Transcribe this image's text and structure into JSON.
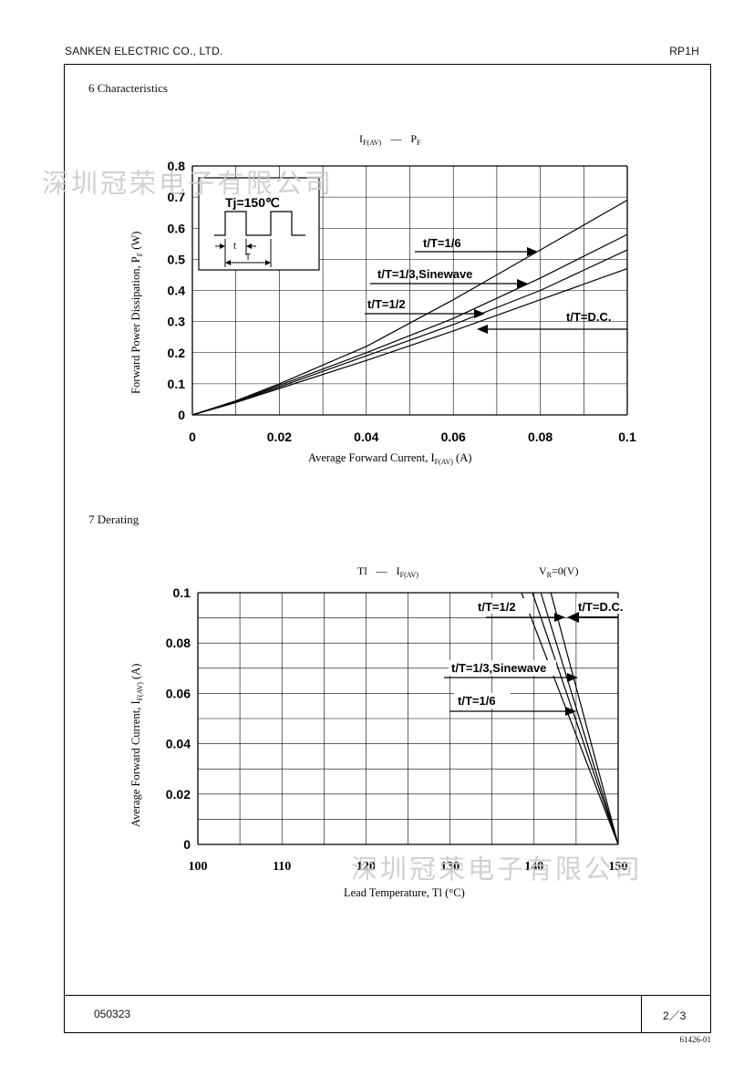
{
  "header": {
    "company": "SANKEN ELECTRIC CO., LTD.",
    "part": "RP1H"
  },
  "footer": {
    "date_code": "050323",
    "page": "2／3",
    "doc_number": "61426-01"
  },
  "watermark": "深圳冠荣电子有限公司",
  "section1": {
    "title": "6   Characteristics",
    "chart_data": {
      "type": "line",
      "title_main": "I",
      "title_sub": "F(AV)",
      "title_dash": "—",
      "title_right_main": "P",
      "title_right_sub": "F",
      "xlabel_main": "Average Forward Current, I",
      "xlabel_sub": "F(AV)",
      "xlabel_unit": " (A)",
      "ylabel_main": "Forward Power Dissipation, P",
      "ylabel_sub": "F",
      "ylabel_unit": " (W)",
      "xlim": [
        0,
        0.1
      ],
      "ylim": [
        0,
        0.8
      ],
      "x_ticks": [
        "0",
        "0.02",
        "0.04",
        "0.06",
        "0.08",
        "0.1"
      ],
      "y_ticks": [
        "0",
        "0.1",
        "0.2",
        "0.3",
        "0.4",
        "0.5",
        "0.6",
        "0.7",
        "0.8"
      ],
      "inset_label": "Tj=150℃",
      "inset_t": "t",
      "inset_T": "T",
      "series": [
        {
          "name": "t/T=1/6",
          "x": [
            0,
            0.01,
            0.02,
            0.04,
            0.06,
            0.08,
            0.1
          ],
          "y": [
            0,
            0.045,
            0.1,
            0.22,
            0.37,
            0.53,
            0.69
          ]
        },
        {
          "name": "t/T=1/3,Sinewave",
          "x": [
            0,
            0.01,
            0.02,
            0.04,
            0.06,
            0.08,
            0.1
          ],
          "y": [
            0,
            0.043,
            0.095,
            0.2,
            0.31,
            0.44,
            0.58
          ]
        },
        {
          "name": "t/T=1/2",
          "x": [
            0,
            0.01,
            0.02,
            0.04,
            0.06,
            0.08,
            0.1
          ],
          "y": [
            0,
            0.042,
            0.09,
            0.19,
            0.29,
            0.4,
            0.53
          ]
        },
        {
          "name": "t/T=D.C.",
          "x": [
            0,
            0.01,
            0.02,
            0.04,
            0.06,
            0.08,
            0.1
          ],
          "y": [
            0,
            0.04,
            0.085,
            0.175,
            0.27,
            0.37,
            0.47
          ]
        }
      ]
    }
  },
  "section2": {
    "title": "7   Derating",
    "chart_data": {
      "type": "line",
      "title_main": "Tl",
      "title_dash": "—",
      "title_right_main": "I",
      "title_right_sub": "F(AV)",
      "vr_main": "V",
      "vr_sub": "R",
      "vr_val": "=0(V)",
      "xlabel": "Lead Temperature, Tl (°C)",
      "ylabel_main": "Average Forward Current, I",
      "ylabel_sub": "F(AV)",
      "ylabel_unit": " (A)",
      "xlim": [
        100,
        150
      ],
      "ylim": [
        0,
        0.1
      ],
      "x_ticks": [
        "100",
        "110",
        "120",
        "130",
        "140",
        "150"
      ],
      "y_ticks": [
        "0",
        "0.02",
        "0.04",
        "0.06",
        "0.08",
        "0.1"
      ],
      "series": [
        {
          "name": "t/T=1/6",
          "x": [
            138.5,
            150
          ],
          "y": [
            0.1,
            0
          ]
        },
        {
          "name": "t/T=1/3,Sinewave",
          "x": [
            139.8,
            150
          ],
          "y": [
            0.1,
            0
          ]
        },
        {
          "name": "t/T=1/2",
          "x": [
            140.8,
            150
          ],
          "y": [
            0.1,
            0
          ]
        },
        {
          "name": "t/T=D.C.",
          "x": [
            142.0,
            150
          ],
          "y": [
            0.1,
            0
          ]
        }
      ]
    }
  }
}
